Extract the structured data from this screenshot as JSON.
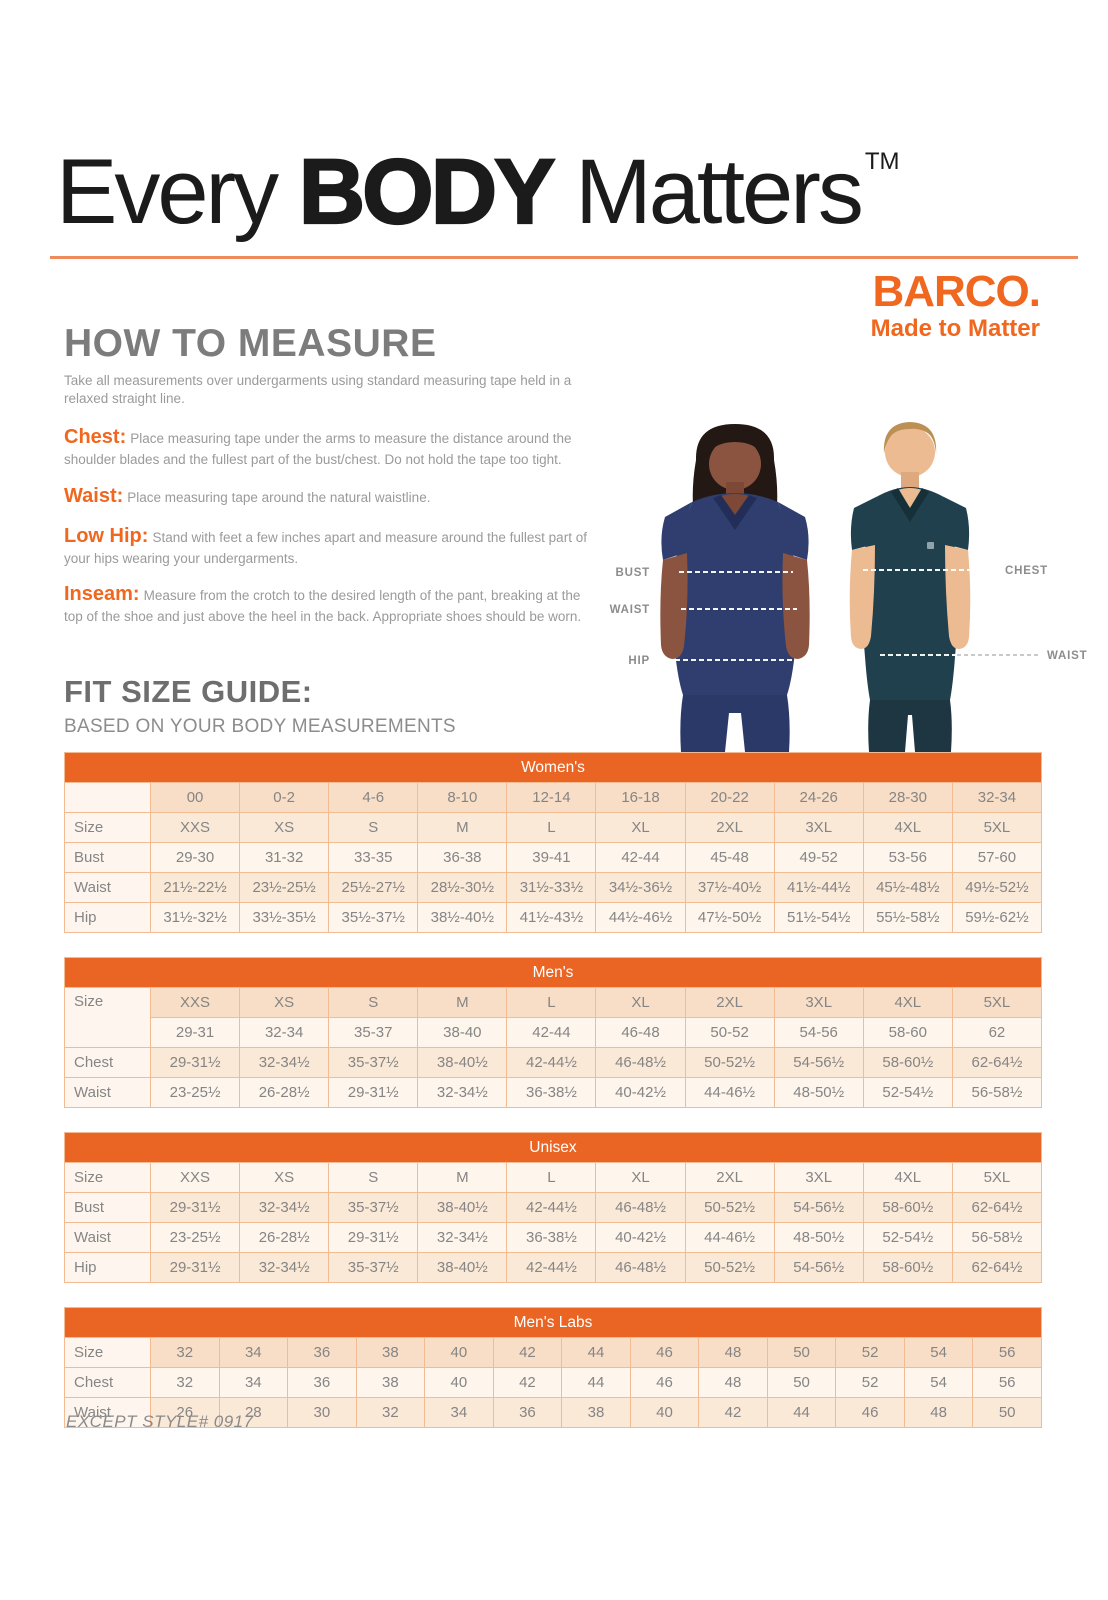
{
  "page_title": {
    "pre": "Every",
    "emph": "BODY",
    "post": "Matters",
    "tm": "TM"
  },
  "brand": {
    "name": "BARCO.",
    "tagline": "Made to Matter"
  },
  "how_to_measure": {
    "heading": "HOW TO MEASURE",
    "intro": "Take all measurements over undergarments using standard measuring tape held in a relaxed straight line.",
    "items": [
      {
        "label": "Chest:",
        "text": "Place measuring tape under the arms to measure the distance around the shoulder blades and the fullest part of the bust/chest. Do not hold the tape too tight."
      },
      {
        "label": "Waist:",
        "text": "Place measuring tape around the natural waistline."
      },
      {
        "label": "Low Hip:",
        "text": "Stand with feet a few inches apart and measure around the fullest part of your hips wearing your undergarments."
      },
      {
        "label": "Inseam:",
        "text": "Measure from the crotch to the desired length of the pant, breaking at the top of the shoe and just above the heel in the back. Appropriate shoes should be worn."
      }
    ]
  },
  "figure": {
    "woman_labels": [
      "BUST",
      "WAIST",
      "HIP"
    ],
    "man_labels": [
      "CHEST",
      "WAIST"
    ]
  },
  "fit_guide": {
    "heading": "FIT SIZE GUIDE:",
    "subheading": "BASED ON YOUR BODY MEASUREMENTS"
  },
  "tables": [
    {
      "id": "womens",
      "title": "Women's",
      "rows": [
        {
          "label": "",
          "shade": "a",
          "cells": [
            "00",
            "0-2",
            "4-6",
            "8-10",
            "12-14",
            "16-18",
            "20-22",
            "24-26",
            "28-30",
            "32-34"
          ]
        },
        {
          "label": "Size",
          "shade": "b",
          "cells": [
            "XXS",
            "XS",
            "S",
            "M",
            "L",
            "XL",
            "2XL",
            "3XL",
            "4XL",
            "5XL"
          ]
        },
        {
          "label": "Bust",
          "shade": "c",
          "cells": [
            "29-30",
            "31-32",
            "33-35",
            "36-38",
            "39-41",
            "42-44",
            "45-48",
            "49-52",
            "53-56",
            "57-60"
          ]
        },
        {
          "label": "Waist",
          "shade": "b",
          "cells": [
            "21½-22½",
            "23½-25½",
            "25½-27½",
            "28½-30½",
            "31½-33½",
            "34½-36½",
            "37½-40½",
            "41½-44½",
            "45½-48½",
            "49½-52½"
          ]
        },
        {
          "label": "Hip",
          "shade": "c",
          "cells": [
            "31½-32½",
            "33½-35½",
            "35½-37½",
            "38½-40½",
            "41½-43½",
            "44½-46½",
            "47½-50½",
            "51½-54½",
            "55½-58½",
            "59½-62½"
          ]
        }
      ]
    },
    {
      "id": "mens",
      "title": "Men's",
      "rows": [
        {
          "label": "Size",
          "label_rowspan": 2,
          "shade": "a",
          "cells": [
            "XXS",
            "XS",
            "S",
            "M",
            "L",
            "XL",
            "2XL",
            "3XL",
            "4XL",
            "5XL"
          ]
        },
        {
          "label": null,
          "shade": "c",
          "cells": [
            "29-31",
            "32-34",
            "35-37",
            "38-40",
            "42-44",
            "46-48",
            "50-52",
            "54-56",
            "58-60",
            "62"
          ]
        },
        {
          "label": "Chest",
          "shade": "b",
          "cells": [
            "29-31½",
            "32-34½",
            "35-37½",
            "38-40½",
            "42-44½",
            "46-48½",
            "50-52½",
            "54-56½",
            "58-60½",
            "62-64½"
          ]
        },
        {
          "label": "Waist",
          "shade": "c",
          "cells": [
            "23-25½",
            "26-28½",
            "29-31½",
            "32-34½",
            "36-38½",
            "40-42½",
            "44-46½",
            "48-50½",
            "52-54½",
            "56-58½"
          ]
        }
      ]
    },
    {
      "id": "unisex",
      "title": "Unisex",
      "rows": [
        {
          "label": "Size",
          "shade": "c",
          "cells": [
            "XXS",
            "XS",
            "S",
            "M",
            "L",
            "XL",
            "2XL",
            "3XL",
            "4XL",
            "5XL"
          ]
        },
        {
          "label": "Bust",
          "shade": "b",
          "cells": [
            "29-31½",
            "32-34½",
            "35-37½",
            "38-40½",
            "42-44½",
            "46-48½",
            "50-52½",
            "54-56½",
            "58-60½",
            "62-64½"
          ]
        },
        {
          "label": "Waist",
          "shade": "c",
          "cells": [
            "23-25½",
            "26-28½",
            "29-31½",
            "32-34½",
            "36-38½",
            "40-42½",
            "44-46½",
            "48-50½",
            "52-54½",
            "56-58½"
          ]
        },
        {
          "label": "Hip",
          "shade": "b",
          "cells": [
            "29-31½",
            "32-34½",
            "35-37½",
            "38-40½",
            "42-44½",
            "46-48½",
            "50-52½",
            "54-56½",
            "58-60½",
            "62-64½"
          ]
        }
      ]
    },
    {
      "id": "mens-labs",
      "title": "Men's Labs",
      "rows": [
        {
          "label": "Size",
          "shade": "a",
          "cells": [
            "32",
            "34",
            "36",
            "38",
            "40",
            "42",
            "44",
            "46",
            "48",
            "50",
            "52",
            "54",
            "56"
          ]
        },
        {
          "label": "Chest",
          "shade": "c",
          "cells": [
            "32",
            "34",
            "36",
            "38",
            "40",
            "42",
            "44",
            "46",
            "48",
            "50",
            "52",
            "54",
            "56"
          ]
        },
        {
          "label": "Waist",
          "shade": "b",
          "cells": [
            "26",
            "28",
            "30",
            "32",
            "34",
            "36",
            "38",
            "40",
            "42",
            "44",
            "46",
            "48",
            "50"
          ]
        }
      ]
    }
  ],
  "footer_note": "EXCEPT STYLE# 0917",
  "colors": {
    "accent_orange": "#EA6524",
    "brand_orange": "#F0671F",
    "title_rule_orange": "#EF8A5C",
    "row_peach": "#F8DEC6",
    "row_mid_peach": "#FBE9D8",
    "row_light": "#FEF5ED",
    "table_border": "#F3BB92",
    "woman_scrub_navy": "#2F3E6E",
    "man_scrub_teal": "#21404D"
  }
}
